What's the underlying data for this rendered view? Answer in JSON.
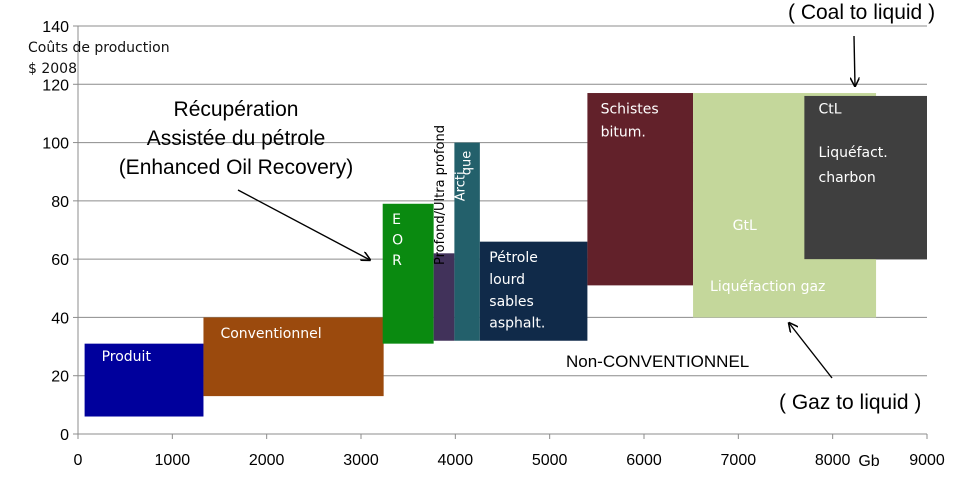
{
  "chart_data": {
    "type": "bar",
    "variant": "floating-variable-width",
    "ylabel": "Coûts de production",
    "ylabel_unit": "$ 2008",
    "xlabel": "Gb",
    "xlim": [
      0,
      9000
    ],
    "ylim": [
      0,
      140
    ],
    "xticks": [
      0,
      1000,
      2000,
      3000,
      4000,
      5000,
      6000,
      7000,
      8000,
      9000
    ],
    "yticks": [
      0,
      20,
      40,
      60,
      80,
      100,
      120,
      140
    ],
    "grid": "horizontal",
    "series": [
      {
        "name": "Produit",
        "x_start": 70,
        "x_end": 1330,
        "y_low": 6,
        "y_high": 31,
        "color": "#00009c",
        "label_color": "#ffffff"
      },
      {
        "name": "Conventionnel",
        "x_start": 1330,
        "x_end": 3240,
        "y_low": 13,
        "y_high": 40,
        "color": "#9b4a0d",
        "label_color": "#ffffff"
      },
      {
        "name": "E O R",
        "x_start": 3230,
        "x_end": 3770,
        "y_low": 31,
        "y_high": 79,
        "color": "#0a8a10",
        "label_color": "#ffffff"
      },
      {
        "name": "",
        "x_start": 3770,
        "x_end": 3990,
        "y_low": 32,
        "y_high": 62,
        "color": "#41325a",
        "label_color": "#ffffff"
      },
      {
        "name": "Arcti que",
        "x_start": 3990,
        "x_end": 4260,
        "y_low": 32,
        "y_high": 100,
        "color": "#23606b",
        "label_color": "#ffffff"
      },
      {
        "name": "Pétrole lourd sables asphalt.",
        "x_start": 4260,
        "x_end": 5400,
        "y_low": 32,
        "y_high": 66,
        "color": "#102a49",
        "label_color": "#ffffff"
      },
      {
        "name": "Schistes bitum.",
        "x_start": 5400,
        "x_end": 6520,
        "y_low": 51,
        "y_high": 117,
        "color": "#62212a",
        "label_color": "#ffffff"
      },
      {
        "name": "GtL",
        "x_start": 6520,
        "x_end": 8460,
        "y_low": 40,
        "y_high": 117,
        "color": "#c4d79b",
        "label_color": "#ffffff"
      },
      {
        "name": "CtL Liquéfact. charbon",
        "x_start": 7700,
        "x_end": 9000,
        "y_low": 60,
        "y_high": 116,
        "color": "#3f3f3f",
        "label_color": "#ffffff"
      }
    ],
    "bar_labels": [
      {
        "text": "Produit",
        "x": 250,
        "y": 25,
        "color": "#ffffff"
      },
      {
        "text": "Conventionnel",
        "x": 1510,
        "y": 33,
        "color": "#ffffff"
      },
      {
        "text": "E",
        "x": 3330,
        "y": 72,
        "color": "#ffffff"
      },
      {
        "text": "O",
        "x": 3330,
        "y": 65,
        "color": "#ffffff"
      },
      {
        "text": "R",
        "x": 3330,
        "y": 58,
        "color": "#ffffff"
      },
      {
        "text": "Pétrole",
        "x": 4360,
        "y": 59,
        "color": "#ffffff"
      },
      {
        "text": "lourd",
        "x": 4360,
        "y": 51.5,
        "color": "#ffffff"
      },
      {
        "text": "sables",
        "x": 4360,
        "y": 44,
        "color": "#ffffff"
      },
      {
        "text": "asphalt.",
        "x": 4360,
        "y": 36.5,
        "color": "#ffffff"
      },
      {
        "text": "Schistes",
        "x": 5540,
        "y": 110,
        "color": "#ffffff"
      },
      {
        "text": "bitum.",
        "x": 5540,
        "y": 102,
        "color": "#ffffff"
      },
      {
        "text": "GtL",
        "x": 6940,
        "y": 70,
        "color": "#ffffff"
      },
      {
        "text": "Liquéfaction gaz",
        "x": 6700,
        "y": 49,
        "color": "#ffffff"
      },
      {
        "text": "CtL",
        "x": 7850,
        "y": 110,
        "color": "#ffffff"
      },
      {
        "text": "Liquéfact.",
        "x": 7850,
        "y": 95,
        "color": "#ffffff"
      },
      {
        "text": "charbon",
        "x": 7850,
        "y": 86.5,
        "color": "#ffffff"
      }
    ],
    "rotated_labels": [
      {
        "text": "Profond/Ultra profond",
        "x": 3880,
        "y": 82,
        "color": "#000000"
      },
      {
        "text": "Arcti",
        "x": 4095,
        "y": 85,
        "color": "#ffffff"
      },
      {
        "text": "que",
        "x": 4160,
        "y": 93,
        "color": "#ffffff"
      }
    ]
  },
  "annotations": {
    "eor_line1": "Récupération",
    "eor_line2": "Assistée du pétrole",
    "eor_line3": "(Enhanced Oil Recovery)",
    "coal": "( Coal to liquid )",
    "gaz": "( Gaz to liquid )",
    "nonconv": "Non-CONVENTIONNEL"
  }
}
